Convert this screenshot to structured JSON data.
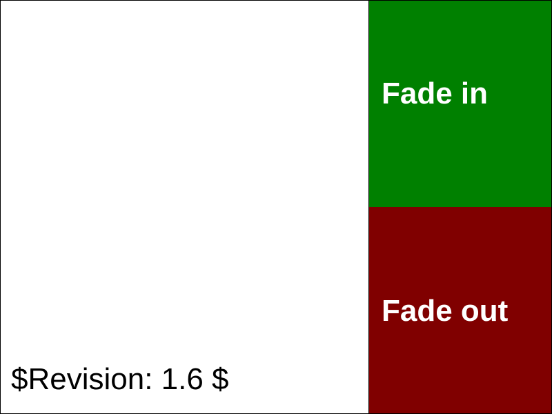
{
  "revision": {
    "text": "$Revision: 1.6 $"
  },
  "buttons": {
    "fade_in": {
      "label": "Fade in",
      "color": "#008000"
    },
    "fade_out": {
      "label": "Fade out",
      "color": "#800000"
    }
  }
}
